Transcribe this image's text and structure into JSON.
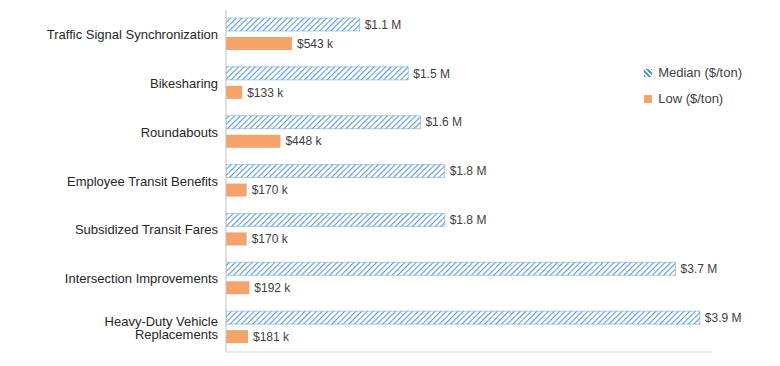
{
  "chart_data": {
    "type": "bar",
    "orientation": "horizontal",
    "categories": [
      "Traffic Signal Synchronization",
      "Bikesharing",
      "Roundabouts",
      "Employee Transit Benefits",
      "Subsidized Transit Fares",
      "Intersection Improvements",
      "Heavy-Duty Vehicle Replacements"
    ],
    "series": [
      {
        "name": "Median ($/ton)",
        "color": "#5b9bd5",
        "values": [
          1100000,
          1500000,
          1600000,
          1800000,
          1800000,
          3700000,
          3900000
        ],
        "value_labels": [
          "$1.1 M",
          "$1.5 M",
          "$1.6 M",
          "$1.8 M",
          "$1.8 M",
          "$3.7 M",
          "$3.9 M"
        ]
      },
      {
        "name": "Low ($/ton)",
        "color": "#f4a46b",
        "values": [
          543000,
          133000,
          448000,
          170000,
          170000,
          192000,
          181000
        ],
        "value_labels": [
          "$543 k",
          "$133 k",
          "$448 k",
          "$170 k",
          "$170 k",
          "$192 k",
          "$181 k"
        ]
      }
    ],
    "xlim": [
      0,
      4000000
    ],
    "data_labels": true,
    "legend": "upper right",
    "tick_labels": "y",
    "grid": false
  }
}
